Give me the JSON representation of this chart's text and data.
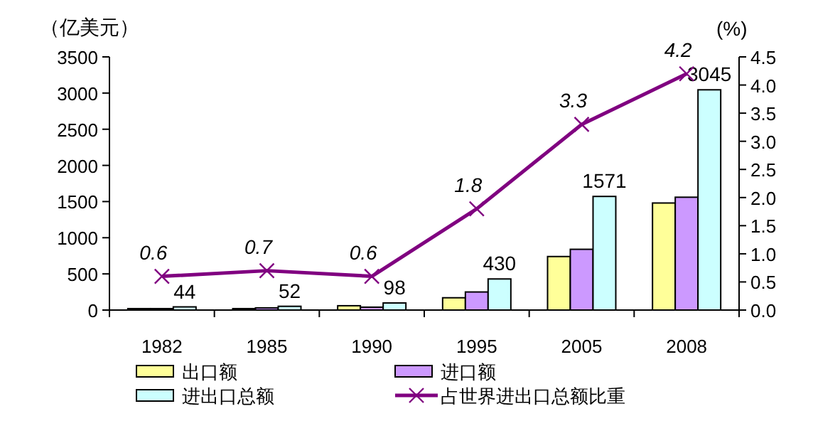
{
  "chart_data": {
    "type": "bar",
    "ylabel": "（亿美元）",
    "y2label": "(%)",
    "categories": [
      "1982",
      "1985",
      "1990",
      "1995",
      "2005",
      "2008"
    ],
    "series": [
      {
        "name": "出口额",
        "color": "#ffff99",
        "values": [
          20,
          20,
          60,
          170,
          740,
          1480
        ]
      },
      {
        "name": "进口额",
        "color": "#cc99ff",
        "values": [
          20,
          30,
          40,
          250,
          840,
          1560
        ]
      },
      {
        "name": "进出口总额",
        "color": "#ccffff",
        "values": [
          44,
          52,
          98,
          430,
          1571,
          3045
        ],
        "value_labels": [
          "44",
          "52",
          "98",
          "430",
          "1571",
          "3045"
        ]
      },
      {
        "name": "占世界进出口总额比重",
        "type": "line",
        "axis": "y2",
        "color": "#800080",
        "marker": "cross",
        "values": [
          0.6,
          0.7,
          0.6,
          1.8,
          3.3,
          4.2
        ],
        "value_labels": [
          "0.6",
          "0.7",
          "0.6",
          "1.8",
          "3.3",
          "4.2"
        ]
      }
    ],
    "ylim": [
      0,
      3500
    ],
    "yticks": [
      0,
      500,
      1000,
      1500,
      2000,
      2500,
      3000,
      3500
    ],
    "y2lim": [
      0,
      4.5
    ],
    "y2ticks": [
      {
        "value": 0,
        "label": "0.0"
      },
      {
        "value": 0.5,
        "label": "0.5"
      },
      {
        "value": 1,
        "label": "1.0"
      },
      {
        "value": 1.5,
        "label": "1.5"
      },
      {
        "value": 2,
        "label": "2.0"
      },
      {
        "value": 2.5,
        "label": "2.5"
      },
      {
        "value": 3,
        "label": "3.0"
      },
      {
        "value": 3.5,
        "label": "3.5"
      },
      {
        "value": 4,
        "label": "4.0"
      },
      {
        "value": 4.5,
        "label": "4.5"
      }
    ],
    "grid": false,
    "legend": "bottom"
  }
}
